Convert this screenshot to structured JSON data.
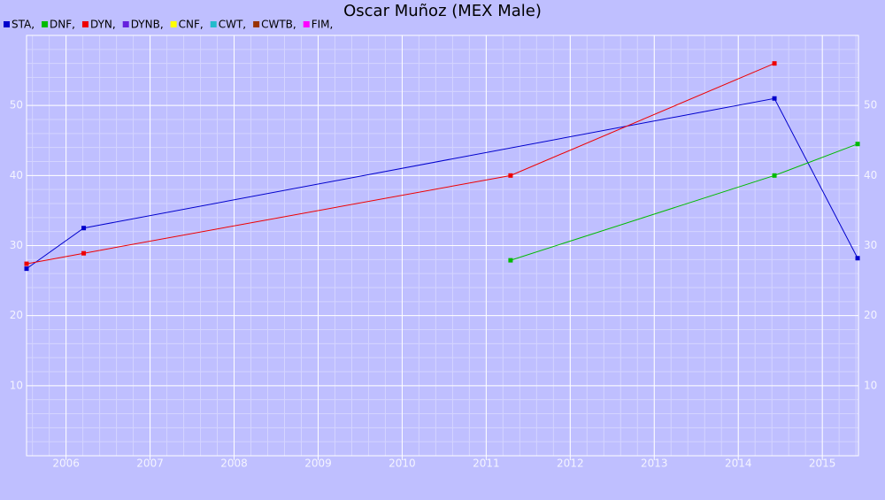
{
  "chart_data": {
    "type": "line",
    "title": "Oscar Muñoz (MEX Male)",
    "series": [
      {
        "name": "STA,",
        "color": "#0000cc",
        "x": [
          2005.53,
          2006.21,
          2014.43,
          2015.42
        ],
        "values": [
          26.7,
          32.5,
          51,
          28.2
        ]
      },
      {
        "name": "DNF,",
        "color": "#00bb00",
        "x": [
          2011.29,
          2014.43,
          2015.42
        ],
        "values": [
          27.9,
          40,
          44.5
        ]
      },
      {
        "name": "DYN,",
        "color": "#ee0000",
        "x": [
          2005.53,
          2006.21,
          2011.29,
          2014.43
        ],
        "values": [
          27.4,
          28.9,
          40,
          56
        ]
      },
      {
        "name": "DYNB,",
        "color": "#6622dd",
        "x": [],
        "values": []
      },
      {
        "name": "CNF,",
        "color": "#ffff00",
        "x": [],
        "values": []
      },
      {
        "name": "CWT,",
        "color": "#22bbcc",
        "x": [],
        "values": []
      },
      {
        "name": "CWTB,",
        "color": "#993300",
        "x": [],
        "values": []
      },
      {
        "name": "FIM,",
        "color": "#ff00ff",
        "x": [],
        "values": []
      }
    ],
    "xlim": [
      2005.53,
      2015.43
    ],
    "xticks": [
      2006,
      2007,
      2008,
      2009,
      2010,
      2011,
      2012,
      2013,
      2014,
      2015
    ],
    "ylim": [
      0,
      60
    ],
    "yticks": [
      10,
      20,
      30,
      40,
      50
    ],
    "grid": true
  }
}
